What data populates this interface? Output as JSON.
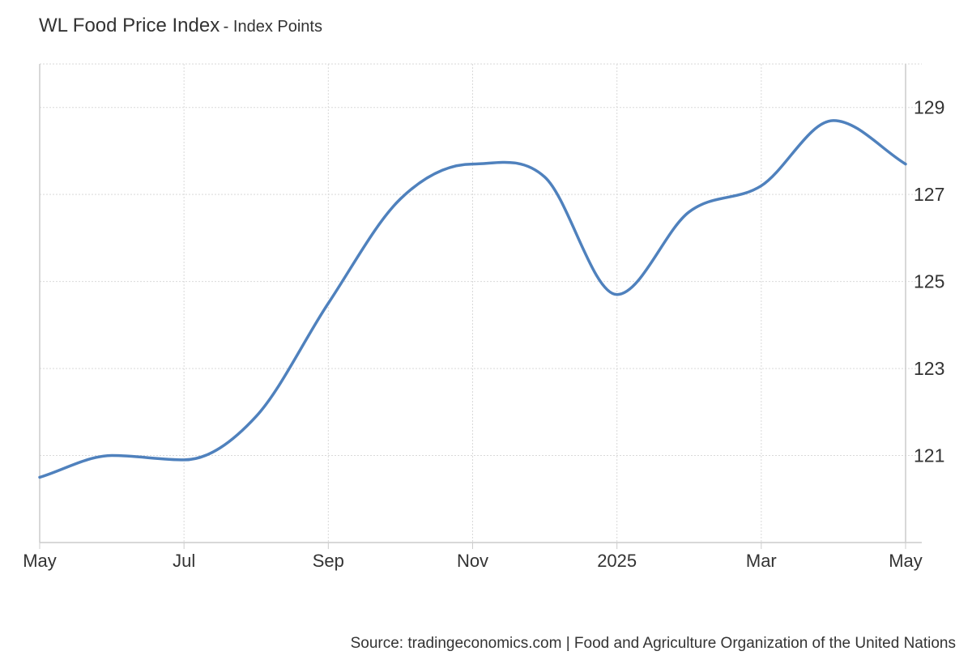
{
  "chart_data": {
    "type": "line",
    "title": "WL Food Price Index",
    "subtitle": "- Index Points",
    "x_labels": [
      "May",
      "Jul",
      "Sep",
      "Nov",
      "2025",
      "Mar",
      "May"
    ],
    "x": [
      "2024-05",
      "2024-06",
      "2024-07",
      "2024-08",
      "2024-09",
      "2024-10",
      "2024-11",
      "2024-12",
      "2025-01",
      "2025-02",
      "2025-03",
      "2025-04",
      "2025-05"
    ],
    "series": [
      {
        "values": [
          120.5,
          121.0,
          120.9,
          121.9,
          124.5,
          126.9,
          127.7,
          127.4,
          124.7,
          126.6,
          127.2,
          128.7,
          127.7
        ]
      }
    ],
    "y_ticks": [
      121,
      123,
      125,
      127,
      129
    ],
    "ylim": [
      119,
      130
    ],
    "grid": true,
    "y_axis_side": "right",
    "line_color": "#4f81bd"
  },
  "source": "Source: tradingeconomics.com | Food and Agriculture Organization of the United Nations"
}
